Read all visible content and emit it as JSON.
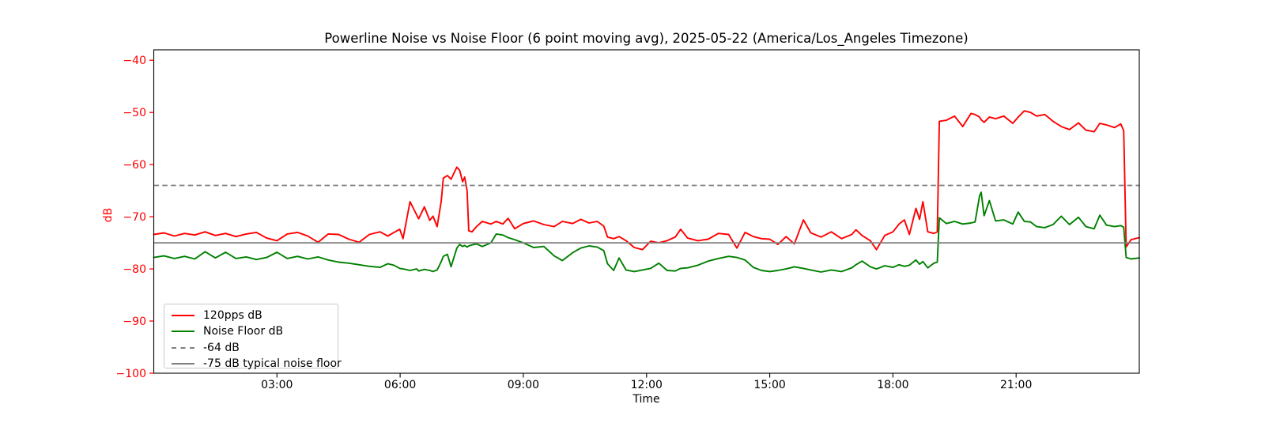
{
  "figure": {
    "title": "Powerline Noise vs Noise Floor (6 point moving avg), 2025-05-22 (America/Los_Angeles Timezone)",
    "xlabel": "Time",
    "ylabel": "dB"
  },
  "colors": {
    "series_red": "#ff0000",
    "series_green": "#008000",
    "reference_gray": "#808080",
    "y_axis_text": "#ff0000",
    "x_axis_text": "#000000",
    "spine": "#000000",
    "background": "#ffffff"
  },
  "legend": {
    "items": [
      {
        "label": "120pps dB",
        "color": "#ff0000",
        "style": "solid"
      },
      {
        "label": "Noise Floor dB",
        "color": "#008000",
        "style": "solid"
      },
      {
        "label": "-64 dB",
        "color": "#808080",
        "style": "dashed"
      },
      {
        "label": "-75 dB typical noise floor",
        "color": "#808080",
        "style": "solid"
      }
    ]
  },
  "chart_data": {
    "type": "line",
    "title": "Powerline Noise vs Noise Floor (6 point moving avg), 2025-05-22 (America/Los_Angeles Timezone)",
    "date": "2025-05-22",
    "timezone": "America/Los_Angeles",
    "xlabel": "Time",
    "ylabel": "dB",
    "grid": false,
    "legend_position": "lower left",
    "xlim_hours": [
      0,
      24
    ],
    "ylim": [
      -100,
      -38
    ],
    "x_ticks": [
      {
        "hours": 3,
        "label": "03:00"
      },
      {
        "hours": 6,
        "label": "06:00"
      },
      {
        "hours": 9,
        "label": "09:00"
      },
      {
        "hours": 12,
        "label": "12:00"
      },
      {
        "hours": 15,
        "label": "15:00"
      },
      {
        "hours": 18,
        "label": "18:00"
      },
      {
        "hours": 21,
        "label": "21:00"
      }
    ],
    "y_ticks": [
      {
        "value": -40,
        "label": "−40"
      },
      {
        "value": -50,
        "label": "−50"
      },
      {
        "value": -60,
        "label": "−60"
      },
      {
        "value": -70,
        "label": "−70"
      },
      {
        "value": -80,
        "label": "−80"
      },
      {
        "value": -90,
        "label": "−90"
      },
      {
        "value": -100,
        "label": "−100"
      }
    ],
    "ref_lines": [
      {
        "value": -64,
        "style": "dashed",
        "color": "#808080",
        "label": "-64 dB"
      },
      {
        "value": -75,
        "style": "solid",
        "color": "#808080",
        "label": "-75 dB typical noise floor"
      }
    ],
    "x_hours": [
      0,
      0.25,
      0.5,
      0.75,
      1,
      1.25,
      1.5,
      1.75,
      2,
      2.25,
      2.5,
      2.75,
      3,
      3.25,
      3.5,
      3.75,
      4,
      4.25,
      4.5,
      4.75,
      5,
      5.25,
      5.51,
      5.7,
      5.85,
      5.99,
      6.07,
      6.24,
      6.4,
      6.45,
      6.59,
      6.72,
      6.8,
      6.9,
      7,
      7.05,
      7.15,
      7.24,
      7.38,
      7.45,
      7.52,
      7.57,
      7.63,
      7.67,
      7.75,
      7.86,
      8,
      8.21,
      8.34,
      8.5,
      8.63,
      8.79,
      9,
      9.25,
      9.5,
      9.75,
      9.95,
      10.2,
      10.4,
      10.6,
      10.8,
      10.96,
      11.05,
      11.2,
      11.33,
      11.5,
      11.7,
      11.9,
      12.1,
      12.3,
      12.5,
      12.7,
      12.83,
      13,
      13.25,
      13.5,
      13.75,
      14,
      14.2,
      14.4,
      14.6,
      14.8,
      15,
      15.2,
      15.4,
      15.6,
      15.82,
      16,
      16.25,
      16.5,
      16.75,
      17,
      17.1,
      17.25,
      17.45,
      17.6,
      17.8,
      18,
      18.15,
      18.28,
      18.4,
      18.56,
      18.65,
      18.73,
      18.85,
      19,
      19.08,
      19.13,
      19.3,
      19.5,
      19.7,
      19.9,
      20,
      20.11,
      20.15,
      20.22,
      20.35,
      20.5,
      20.7,
      20.92,
      21.05,
      21.2,
      21.35,
      21.5,
      21.7,
      21.9,
      22.1,
      22.3,
      22.52,
      22.7,
      22.9,
      23.04,
      23.2,
      23.4,
      23.55,
      23.62,
      23.68,
      23.8,
      24
    ],
    "series": [
      {
        "name": "120pps dB",
        "color": "#ff0000",
        "values": [
          -73.4,
          -73.1,
          -73.7,
          -73.2,
          -73.5,
          -72.9,
          -73.6,
          -73.2,
          -73.8,
          -73.3,
          -73.0,
          -74.1,
          -74.6,
          -73.3,
          -73.0,
          -73.7,
          -74.9,
          -73.3,
          -73.4,
          -74.3,
          -74.9,
          -73.4,
          -72.9,
          -73.7,
          -73.0,
          -72.4,
          -74.2,
          -67.1,
          -69.6,
          -70.4,
          -68.1,
          -70.7,
          -69.9,
          -71.9,
          -67.0,
          -62.6,
          -62.1,
          -62.8,
          -60.5,
          -61.1,
          -63.3,
          -62.4,
          -65.0,
          -72.7,
          -72.9,
          -71.9,
          -70.9,
          -71.4,
          -70.9,
          -71.4,
          -70.3,
          -72.3,
          -71.3,
          -70.8,
          -71.5,
          -71.9,
          -70.9,
          -71.3,
          -70.5,
          -71.2,
          -70.9,
          -71.8,
          -73.9,
          -74.2,
          -73.8,
          -74.6,
          -75.9,
          -76.3,
          -74.7,
          -75.0,
          -74.6,
          -73.9,
          -72.4,
          -74.1,
          -74.6,
          -74.3,
          -73.2,
          -73.4,
          -76.0,
          -73.0,
          -73.8,
          -74.2,
          -74.3,
          -75.3,
          -73.8,
          -75.2,
          -70.6,
          -73.1,
          -73.9,
          -72.9,
          -74.2,
          -73.4,
          -72.5,
          -73.6,
          -74.6,
          -76.3,
          -73.6,
          -72.9,
          -71.4,
          -70.6,
          -73.4,
          -68.4,
          -70.5,
          -67.1,
          -72.9,
          -73.2,
          -72.9,
          -51.7,
          -51.5,
          -50.7,
          -52.7,
          -50.2,
          -50.4,
          -50.9,
          -51.4,
          -51.9,
          -50.9,
          -51.2,
          -50.7,
          -52.1,
          -50.9,
          -49.7,
          -50.0,
          -50.7,
          -50.4,
          -51.7,
          -52.7,
          -53.3,
          -52.0,
          -53.4,
          -53.7,
          -52.1,
          -52.4,
          -52.9,
          -52.2,
          -53.5,
          -75.8,
          -74.4,
          -74.0
        ]
      },
      {
        "name": "Noise Floor dB",
        "color": "#008000",
        "values": [
          -77.8,
          -77.5,
          -78.0,
          -77.6,
          -78.1,
          -76.7,
          -77.9,
          -76.8,
          -78.0,
          -77.7,
          -78.2,
          -77.8,
          -76.8,
          -78.0,
          -77.6,
          -78.1,
          -77.7,
          -78.3,
          -78.7,
          -78.9,
          -79.2,
          -79.5,
          -79.7,
          -79.0,
          -79.3,
          -79.9,
          -80.0,
          -80.3,
          -80.0,
          -80.4,
          -80.1,
          -80.3,
          -80.5,
          -80.2,
          -78.6,
          -77.6,
          -77.2,
          -79.6,
          -76.0,
          -75.3,
          -75.7,
          -75.5,
          -75.8,
          -75.6,
          -75.4,
          -75.2,
          -75.7,
          -75.0,
          -73.3,
          -73.5,
          -74.0,
          -74.4,
          -75.0,
          -75.9,
          -75.7,
          -77.5,
          -78.4,
          -76.9,
          -76.0,
          -75.6,
          -75.8,
          -76.5,
          -79.0,
          -80.3,
          -77.9,
          -80.2,
          -80.5,
          -80.2,
          -79.9,
          -78.9,
          -80.3,
          -80.4,
          -79.9,
          -79.8,
          -79.3,
          -78.5,
          -78.0,
          -77.6,
          -77.8,
          -78.3,
          -79.7,
          -80.3,
          -80.5,
          -80.3,
          -80.0,
          -79.6,
          -79.9,
          -80.2,
          -80.6,
          -80.2,
          -80.5,
          -79.8,
          -79.2,
          -78.5,
          -79.6,
          -80.0,
          -79.4,
          -79.7,
          -79.2,
          -79.5,
          -79.3,
          -78.3,
          -79.1,
          -78.6,
          -79.8,
          -78.9,
          -78.7,
          -70.2,
          -71.3,
          -70.9,
          -71.4,
          -71.2,
          -71.0,
          -66.0,
          -65.3,
          -69.8,
          -66.9,
          -70.8,
          -70.6,
          -71.4,
          -69.1,
          -70.9,
          -71.0,
          -71.9,
          -72.1,
          -71.5,
          -69.9,
          -71.5,
          -70.1,
          -71.9,
          -72.3,
          -69.7,
          -71.6,
          -71.9,
          -71.7,
          -72.0,
          -77.8,
          -78.1,
          -77.9
        ]
      }
    ]
  }
}
